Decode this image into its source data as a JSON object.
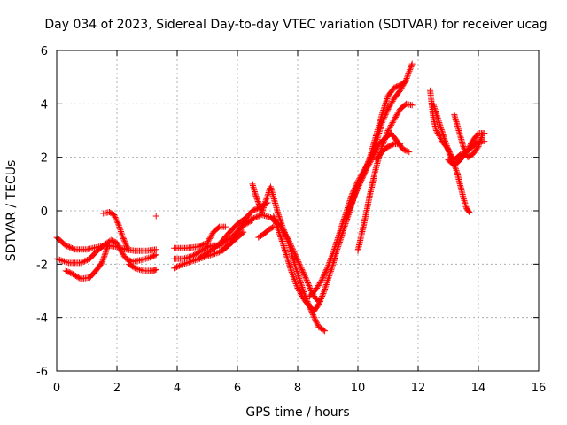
{
  "chart_data": {
    "type": "scatter",
    "title": "Day 034 of 2023, Sidereal Day-to-day VTEC variation (SDTVAR) for receiver ucag",
    "xlabel": "GPS time / hours",
    "ylabel": "SDTVAR / TECUs",
    "xlim": [
      0,
      16
    ],
    "ylim": [
      -6,
      6
    ],
    "xticks": [
      "0",
      "2",
      "4",
      "6",
      "8",
      "10",
      "12",
      "14",
      "16"
    ],
    "yticks": [
      "-6",
      "-4",
      "-2",
      "0",
      "2",
      "4",
      "6"
    ],
    "grid": true,
    "marker": "+",
    "color": "#ff0000",
    "series": [
      {
        "points": [
          [
            0.0,
            -1.0
          ],
          [
            0.3,
            -1.3
          ],
          [
            0.6,
            -1.45
          ],
          [
            1.0,
            -1.45
          ],
          [
            1.4,
            -1.35
          ],
          [
            1.7,
            -1.3
          ],
          [
            2.0,
            -1.35
          ],
          [
            2.3,
            -1.45
          ],
          [
            2.6,
            -1.5
          ],
          [
            3.0,
            -1.5
          ],
          [
            3.3,
            -1.45
          ]
        ]
      },
      {
        "points": [
          [
            0.0,
            -1.8
          ],
          [
            0.4,
            -1.95
          ],
          [
            0.8,
            -1.95
          ],
          [
            1.1,
            -1.8
          ],
          [
            1.3,
            -1.55
          ],
          [
            1.55,
            -1.3
          ],
          [
            1.8,
            -1.1
          ],
          [
            2.0,
            -1.2
          ],
          [
            2.1,
            -1.45
          ],
          [
            2.3,
            -1.8
          ],
          [
            2.5,
            -1.9
          ],
          [
            2.8,
            -1.85
          ],
          [
            3.1,
            -1.75
          ],
          [
            3.3,
            -1.65
          ]
        ]
      },
      {
        "points": [
          [
            0.3,
            -2.25
          ],
          [
            0.5,
            -2.35
          ],
          [
            0.8,
            -2.55
          ],
          [
            1.1,
            -2.5
          ],
          [
            1.3,
            -2.25
          ],
          [
            1.5,
            -1.95
          ],
          [
            1.6,
            -1.65
          ],
          [
            1.7,
            -1.3
          ]
        ]
      },
      {
        "points": [
          [
            1.55,
            -0.1
          ],
          [
            1.75,
            -0.05
          ],
          [
            1.9,
            -0.15
          ],
          [
            2.05,
            -0.5
          ],
          [
            2.2,
            -1.0
          ],
          [
            2.35,
            -1.4
          ]
        ]
      },
      {
        "points": [
          [
            2.4,
            -2.0
          ],
          [
            2.6,
            -2.15
          ],
          [
            2.9,
            -2.25
          ],
          [
            3.2,
            -2.25
          ],
          [
            3.3,
            -2.2
          ]
        ]
      },
      {
        "points": [
          [
            3.3,
            -0.2
          ]
        ]
      },
      {
        "points": [
          [
            3.9,
            -2.15
          ],
          [
            4.2,
            -2.0
          ],
          [
            4.6,
            -1.85
          ],
          [
            5.0,
            -1.7
          ],
          [
            5.4,
            -1.55
          ],
          [
            5.8,
            -1.2
          ],
          [
            6.2,
            -0.8
          ]
        ]
      },
      {
        "points": [
          [
            3.9,
            -1.4
          ],
          [
            4.3,
            -1.4
          ],
          [
            4.7,
            -1.35
          ],
          [
            5.0,
            -1.2
          ],
          [
            5.2,
            -0.8
          ],
          [
            5.4,
            -0.6
          ],
          [
            5.6,
            -0.6
          ]
        ]
      },
      {
        "points": [
          [
            3.9,
            -1.8
          ],
          [
            4.2,
            -1.8
          ],
          [
            4.5,
            -1.7
          ],
          [
            4.8,
            -1.5
          ],
          [
            5.1,
            -1.3
          ],
          [
            5.4,
            -1.3
          ],
          [
            5.8,
            -1.0
          ],
          [
            6.2,
            -0.55
          ],
          [
            6.5,
            -0.35
          ]
        ]
      },
      {
        "points": [
          [
            4.7,
            -1.8
          ],
          [
            4.9,
            -1.65
          ],
          [
            5.1,
            -1.5
          ],
          [
            5.4,
            -1.25
          ],
          [
            5.7,
            -0.85
          ],
          [
            6.0,
            -0.5
          ],
          [
            6.3,
            -0.25
          ],
          [
            6.5,
            0.0
          ],
          [
            6.7,
            0.1
          ],
          [
            7.0,
            0.3
          ]
        ]
      },
      {
        "points": [
          [
            5.5,
            -1.5
          ],
          [
            5.8,
            -1.2
          ],
          [
            6.0,
            -0.8
          ],
          [
            6.2,
            -0.45
          ],
          [
            6.5,
            -0.3
          ],
          [
            6.8,
            -0.15
          ],
          [
            7.1,
            -0.25
          ],
          [
            7.4,
            -0.55
          ],
          [
            7.7,
            -1.1
          ],
          [
            7.9,
            -1.6
          ],
          [
            8.1,
            -2.1
          ],
          [
            8.3,
            -2.6
          ],
          [
            8.45,
            -3.0
          ],
          [
            8.6,
            -3.3
          ],
          [
            8.75,
            -3.4
          ]
        ]
      },
      {
        "points": [
          [
            6.5,
            1.0
          ],
          [
            6.6,
            0.6
          ],
          [
            6.7,
            0.3
          ],
          [
            6.8,
            0.0
          ]
        ]
      },
      {
        "points": [
          [
            6.7,
            -1.0
          ],
          [
            6.9,
            -0.85
          ],
          [
            7.05,
            -0.7
          ],
          [
            7.2,
            -0.6
          ]
        ]
      },
      {
        "points": [
          [
            6.8,
            -0.1
          ],
          [
            6.95,
            0.4
          ],
          [
            7.1,
            0.9
          ],
          [
            7.2,
            0.5
          ],
          [
            7.35,
            -0.1
          ],
          [
            7.5,
            -0.6
          ],
          [
            7.7,
            -1.2
          ],
          [
            7.9,
            -2.0
          ],
          [
            8.1,
            -2.7
          ],
          [
            8.25,
            -3.2
          ],
          [
            8.4,
            -3.6
          ],
          [
            8.55,
            -3.75
          ],
          [
            8.7,
            -3.5
          ],
          [
            8.85,
            -3.1
          ],
          [
            9.0,
            -2.6
          ],
          [
            9.15,
            -2.1
          ],
          [
            9.3,
            -1.5
          ],
          [
            9.5,
            -0.8
          ],
          [
            9.7,
            -0.1
          ],
          [
            9.9,
            0.6
          ],
          [
            10.1,
            1.1
          ],
          [
            10.3,
            1.6
          ],
          [
            10.5,
            2.0
          ],
          [
            10.7,
            2.5
          ],
          [
            10.9,
            2.7
          ],
          [
            11.1,
            2.9
          ],
          [
            11.3,
            2.6
          ],
          [
            11.5,
            2.3
          ],
          [
            11.7,
            2.2
          ]
        ]
      },
      {
        "points": [
          [
            7.2,
            -0.2
          ],
          [
            7.5,
            -1.2
          ],
          [
            7.8,
            -2.3
          ],
          [
            8.0,
            -2.9
          ],
          [
            8.2,
            -3.3
          ],
          [
            8.4,
            -3.6
          ],
          [
            8.55,
            -4.0
          ],
          [
            8.7,
            -4.35
          ],
          [
            8.9,
            -4.5
          ]
        ]
      },
      {
        "points": [
          [
            8.4,
            -3.2
          ],
          [
            8.6,
            -2.95
          ],
          [
            8.8,
            -2.6
          ],
          [
            9.0,
            -2.1
          ],
          [
            9.2,
            -1.5
          ],
          [
            9.4,
            -0.8
          ],
          [
            9.6,
            -0.1
          ],
          [
            9.8,
            0.6
          ],
          [
            10.0,
            1.1
          ],
          [
            10.2,
            1.5
          ],
          [
            10.4,
            1.9
          ],
          [
            10.6,
            2.5
          ],
          [
            10.8,
            3.3
          ],
          [
            11.0,
            3.8
          ],
          [
            11.2,
            4.2
          ],
          [
            11.4,
            4.5
          ],
          [
            11.6,
            4.9
          ],
          [
            11.8,
            5.5
          ]
        ]
      },
      {
        "points": [
          [
            9.6,
            -0.3
          ],
          [
            9.8,
            0.3
          ],
          [
            10.0,
            0.9
          ],
          [
            10.2,
            1.4
          ],
          [
            10.4,
            2.0
          ],
          [
            10.6,
            2.8
          ],
          [
            10.8,
            3.6
          ],
          [
            11.0,
            4.3
          ],
          [
            11.2,
            4.6
          ],
          [
            11.4,
            4.7
          ],
          [
            11.6,
            4.85
          ]
        ]
      },
      {
        "points": [
          [
            10.0,
            -1.5
          ],
          [
            10.2,
            -0.5
          ],
          [
            10.4,
            0.6
          ],
          [
            10.6,
            1.6
          ],
          [
            10.8,
            2.4
          ],
          [
            11.0,
            3.0
          ],
          [
            11.2,
            3.4
          ],
          [
            11.4,
            3.8
          ],
          [
            11.6,
            4.0
          ],
          [
            11.8,
            3.95
          ]
        ]
      },
      {
        "points": [
          [
            10.6,
            1.9
          ],
          [
            10.8,
            2.2
          ],
          [
            11.0,
            2.4
          ],
          [
            11.2,
            2.5
          ],
          [
            11.4,
            2.5
          ]
        ]
      },
      {
        "points": [
          [
            12.4,
            4.5
          ],
          [
            12.5,
            3.5
          ],
          [
            12.6,
            3.0
          ],
          [
            12.8,
            2.6
          ],
          [
            13.0,
            2.3
          ],
          [
            13.15,
            1.9
          ],
          [
            13.3,
            1.4
          ],
          [
            13.5,
            0.5
          ],
          [
            13.6,
            0.1
          ],
          [
            13.7,
            -0.05
          ]
        ]
      },
      {
        "points": [
          [
            12.5,
            4.0
          ],
          [
            12.7,
            3.3
          ],
          [
            12.9,
            2.6
          ],
          [
            13.05,
            2.1
          ],
          [
            13.2,
            1.9
          ],
          [
            13.4,
            2.1
          ],
          [
            13.6,
            2.2
          ],
          [
            13.8,
            2.4
          ],
          [
            14.0,
            2.6
          ],
          [
            14.2,
            2.6
          ]
        ]
      },
      {
        "points": [
          [
            13.2,
            3.6
          ],
          [
            13.35,
            3.0
          ],
          [
            13.5,
            2.4
          ],
          [
            13.65,
            2.0
          ],
          [
            13.8,
            2.1
          ],
          [
            14.0,
            2.4
          ],
          [
            14.15,
            2.9
          ]
        ]
      },
      {
        "points": [
          [
            13.0,
            1.9
          ],
          [
            13.2,
            1.7
          ],
          [
            13.4,
            1.9
          ],
          [
            13.6,
            2.2
          ],
          [
            13.8,
            2.6
          ],
          [
            14.0,
            2.9
          ],
          [
            14.2,
            2.9
          ]
        ]
      }
    ]
  }
}
